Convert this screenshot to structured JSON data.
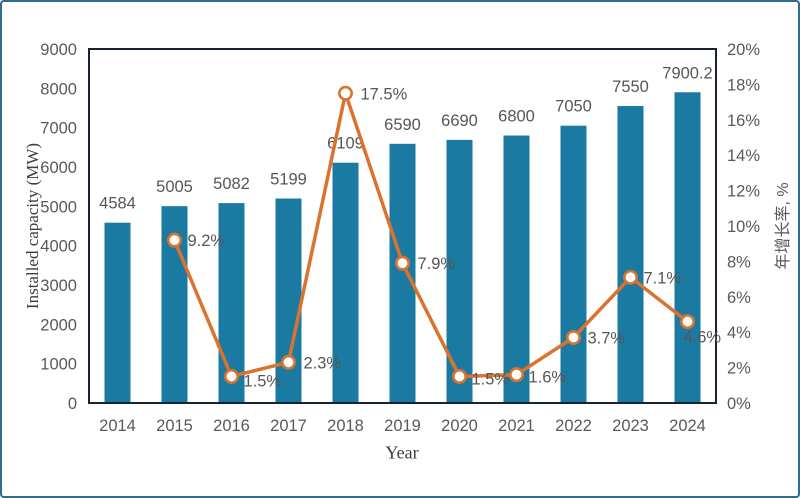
{
  "chart_data": {
    "type": [
      "bar",
      "line"
    ],
    "title": "",
    "categories": [
      "2014",
      "2015",
      "2016",
      "2017",
      "2018",
      "2019",
      "2020",
      "2021",
      "2022",
      "2023",
      "2024"
    ],
    "series": [
      {
        "name": "Installed capacity (MW)",
        "type": "bar",
        "axis": "left",
        "values": [
          4584,
          5005,
          5082,
          5199,
          6109,
          6590,
          6690,
          6800,
          7050,
          7550,
          7900.2
        ],
        "labels": [
          "4584",
          "5005",
          "5082",
          "5199",
          "6109",
          "6590",
          "6690",
          "6800",
          "7050",
          "7550",
          "7900.2"
        ],
        "color": "#1b7aa1"
      },
      {
        "name": "年增长率",
        "type": "line",
        "axis": "right",
        "values": [
          null,
          9.2,
          1.5,
          2.3,
          17.5,
          7.9,
          1.5,
          1.6,
          3.7,
          7.1,
          4.6
        ],
        "labels": [
          null,
          "9.2%",
          "1.5%",
          "2.3%",
          "17.5%",
          "7.9%",
          "1.5%",
          "1.6%",
          "3.7%",
          "7.1%",
          "4.6%"
        ],
        "color": "#d9732f",
        "marker_fill": "#ffffff"
      }
    ],
    "xlabel": "Year",
    "ylabel_left": "Installed capacity (MW)",
    "ylabel_right": "年增长率, %",
    "y_left": {
      "min": 0,
      "max": 9000,
      "step": 1000,
      "tick_labels": [
        "0",
        "1000",
        "2000",
        "3000",
        "4000",
        "5000",
        "6000",
        "7000",
        "8000",
        "9000"
      ]
    },
    "y_right": {
      "min": 0,
      "max": 20,
      "step": 2,
      "tick_labels": [
        "0%",
        "2%",
        "4%",
        "6%",
        "8%",
        "10%",
        "12%",
        "14%",
        "16%",
        "18%",
        "20%"
      ]
    },
    "grid": false,
    "legend": "none",
    "colors": {
      "bar": "#1b7aa1",
      "line": "#d9732f",
      "marker_fill": "#ffffff",
      "plot_border": "#172233",
      "outer_border": "#2e6d8f",
      "tick_text": "#595959",
      "label_text": "#565656"
    }
  }
}
